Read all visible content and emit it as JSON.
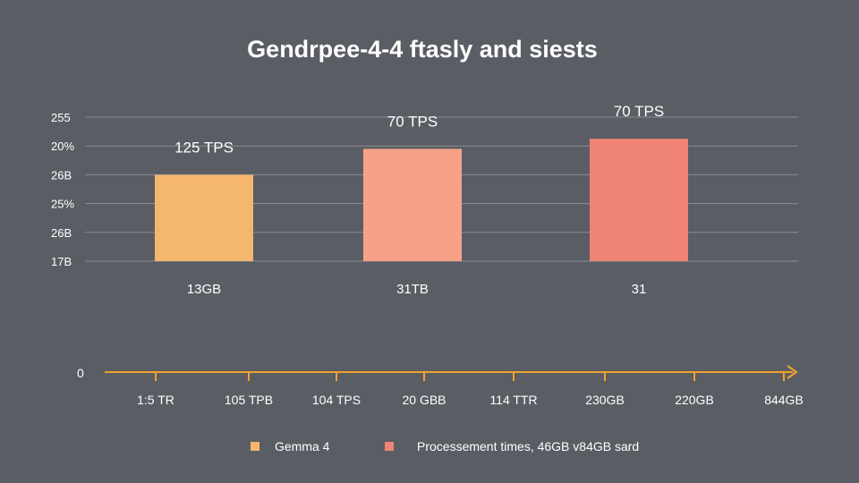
{
  "chart_data": {
    "type": "bar",
    "title": "Gendrpee-4-4 ftasly and siests",
    "y_tick_labels": [
      "17B",
      "26B",
      "25%",
      "26B",
      "20%",
      "255"
    ],
    "ylim": [
      0,
      5
    ],
    "grid": true,
    "categories": [
      "13GB",
      "31TB",
      "31"
    ],
    "series": [
      {
        "values": [
          3.0,
          3.9,
          4.25
        ],
        "data_labels": [
          "125 TPS",
          "70 TPS",
          "70 TPS"
        ]
      }
    ],
    "bar_colors": [
      "#f5b76e",
      "#f7a189",
      "#ef8476"
    ],
    "timeline": {
      "origin_label": "0",
      "tick_labels": [
        "1:5 TR",
        "105 TPB",
        "104 TPS",
        "20 GBB",
        "114 TTR",
        "230GB",
        "220GB",
        "844GB"
      ],
      "color": "#f0a22e"
    },
    "legend": {
      "placement": "bottom",
      "items": [
        {
          "label": "Gemma 4",
          "color": "#f5b76e"
        },
        {
          "label": "Processement times, 46GB v84GB sard",
          "color": "#ef8476"
        }
      ]
    }
  }
}
